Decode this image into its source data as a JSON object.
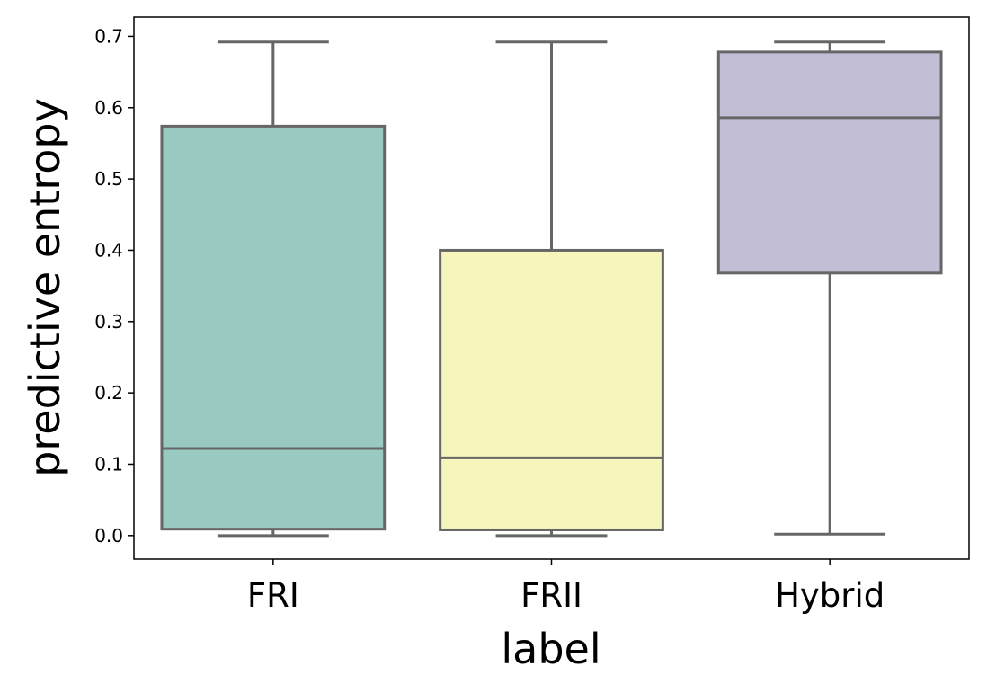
{
  "chart_data": {
    "type": "box",
    "title": "",
    "xlabel": "label",
    "ylabel": "predictive entropy",
    "ylim": [
      -0.033,
      0.727
    ],
    "yticks": [
      0.0,
      0.1,
      0.2,
      0.3,
      0.4,
      0.5,
      0.6,
      0.7
    ],
    "ytick_labels": [
      "0.0",
      "0.1",
      "0.2",
      "0.3",
      "0.4",
      "0.5",
      "0.6",
      "0.7"
    ],
    "categories": [
      "FRI",
      "FRII",
      "Hybrid"
    ],
    "boxes": [
      {
        "category": "FRI",
        "whisker_low": 0.0,
        "q1": 0.009,
        "median": 0.122,
        "q3": 0.574,
        "whisker_high": 0.692,
        "color": "#98cac2"
      },
      {
        "category": "FRII",
        "whisker_low": 0.0,
        "q1": 0.008,
        "median": 0.109,
        "q3": 0.4,
        "whisker_high": 0.692,
        "color": "#f6f5bc"
      },
      {
        "category": "Hybrid",
        "whisker_low": 0.002,
        "q1": 0.368,
        "median": 0.586,
        "q3": 0.678,
        "whisker_high": 0.692,
        "color": "#c2bed6"
      }
    ],
    "grid": false,
    "line_color": "#666666"
  }
}
